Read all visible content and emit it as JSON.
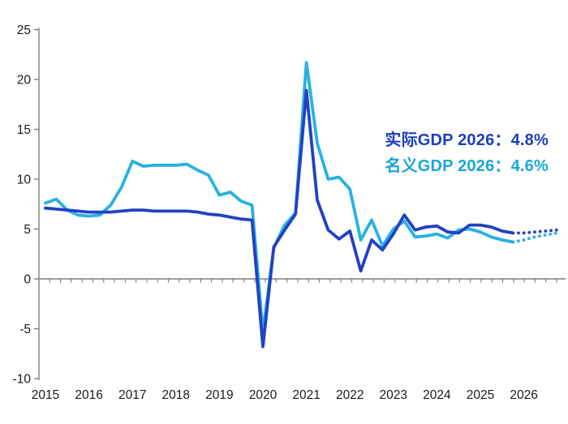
{
  "page": {
    "background": "#ffffff"
  },
  "colors": {
    "real_line": "#2142c4",
    "nominal_line": "#28b1e3",
    "real_text": "#1d3dbd",
    "nominal_text": "#18a7db",
    "axis": "#7f7f7f",
    "tick_label": "#1a1a1a"
  },
  "annotations": {
    "real": {
      "text": "实际GDP 2026：4.8%",
      "color": "#1d3dbd"
    },
    "nominal": {
      "text": "名义GDP 2026：4.6%",
      "color": "#18a7db"
    }
  },
  "chart_data": {
    "type": "line",
    "title": "",
    "frequency": "quarterly",
    "x_year_labels": [
      "2015",
      "2016",
      "2017",
      "2018",
      "2019",
      "2020",
      "2021",
      "2022",
      "2023",
      "2024",
      "2025",
      "2026"
    ],
    "y_tick_labels": [
      25,
      20,
      15,
      10,
      5,
      0,
      -5,
      -10
    ],
    "ylim": [
      -10,
      25
    ],
    "grid": "off",
    "legend_position": "none",
    "series": [
      {
        "name": "实际GDP",
        "color": "#2142c4",
        "style_solid_range": "2015Q1-2025Q4",
        "style_dotted_range": "2026Q1-2026Q4",
        "values": [
          7.1,
          7.0,
          6.9,
          6.8,
          6.7,
          6.7,
          6.7,
          6.8,
          6.9,
          6.9,
          6.8,
          6.8,
          6.8,
          6.8,
          6.7,
          6.5,
          6.4,
          6.2,
          6.0,
          5.9,
          -6.8,
          3.2,
          4.9,
          6.5,
          18.9,
          7.9,
          4.9,
          4.0,
          4.8,
          0.8,
          3.9,
          2.9,
          4.5,
          6.4,
          4.9,
          5.2,
          5.3,
          4.7,
          4.6,
          5.4,
          5.4,
          5.2,
          4.8,
          4.6
        ],
        "forecast_values": [
          4.6,
          4.7,
          4.8,
          4.9
        ],
        "forecast_2026_label": "4.8%"
      },
      {
        "name": "名义GDP",
        "color": "#28b1e3",
        "style_solid_range": "2015Q1-2025Q4",
        "style_dotted_range": "2026Q1-2026Q4",
        "values": [
          7.6,
          8.0,
          6.9,
          6.4,
          6.3,
          6.4,
          7.4,
          9.2,
          11.8,
          11.3,
          11.4,
          11.4,
          11.4,
          11.5,
          10.9,
          10.4,
          8.4,
          8.7,
          7.8,
          7.4,
          -5.3,
          3.1,
          5.4,
          6.6,
          21.7,
          13.6,
          10.0,
          10.2,
          9.0,
          3.9,
          5.9,
          3.3,
          5.0,
          5.8,
          4.2,
          4.3,
          4.5,
          4.1,
          4.9,
          5.0,
          4.7,
          4.2,
          3.9,
          3.7
        ],
        "forecast_values": [
          3.9,
          4.2,
          4.4,
          4.6
        ],
        "forecast_2026_label": "4.6%"
      }
    ]
  }
}
